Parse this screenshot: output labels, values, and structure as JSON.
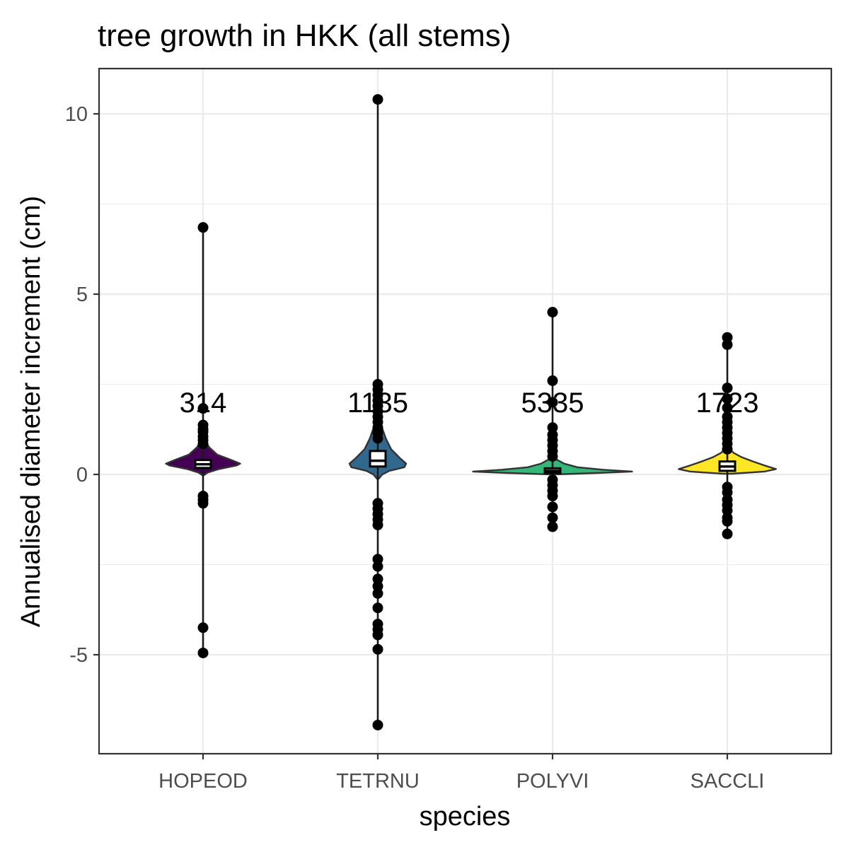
{
  "chart_data": {
    "type": "violin",
    "title": "tree growth in HKK (all stems)",
    "xlabel": "species",
    "ylabel": "Annualised diameter increment (cm)",
    "ylim": [
      -7.3,
      10.9
    ],
    "y_ticks": [
      -5,
      0,
      5,
      10
    ],
    "y_tick_labels": [
      "-5",
      "0",
      "5",
      "10"
    ],
    "grid": true,
    "categories": [
      "HOPEOD",
      "TETRNU",
      "POLYVI",
      "SACCLI"
    ],
    "series": [
      {
        "category": "HOPEOD",
        "n_label": "314",
        "fill": "#440154",
        "violin_profile": [
          [
            -0.02,
            0.01
          ],
          [
            0.05,
            0.05
          ],
          [
            0.15,
            0.18
          ],
          [
            0.25,
            0.38
          ],
          [
            0.3,
            0.42
          ],
          [
            0.4,
            0.32
          ],
          [
            0.55,
            0.16
          ],
          [
            0.75,
            0.07
          ],
          [
            0.95,
            0.02
          ]
        ],
        "box": {
          "q1": 0.18,
          "median": 0.28,
          "q3": 0.4
        },
        "whisker_low": -4.95,
        "whisker_high": 6.85,
        "outliers": [
          6.85,
          1.83,
          1.37,
          1.25,
          1.18,
          1.05,
          0.95,
          0.85,
          -0.6,
          -0.7,
          -0.8,
          -4.25,
          -4.95
        ]
      },
      {
        "category": "TETRNU",
        "n_label": "1135",
        "fill": "#31688e",
        "violin_profile": [
          [
            -0.12,
            0.01
          ],
          [
            0.0,
            0.05
          ],
          [
            0.1,
            0.13
          ],
          [
            0.2,
            0.3
          ],
          [
            0.3,
            0.32
          ],
          [
            0.45,
            0.25
          ],
          [
            0.7,
            0.15
          ],
          [
            1.0,
            0.09
          ],
          [
            1.35,
            0.04
          ],
          [
            1.7,
            0.01
          ]
        ],
        "box": {
          "q1": 0.22,
          "median": 0.38,
          "q3": 0.65
        },
        "whisker_low": -6.95,
        "whisker_high": 10.4,
        "outliers": [
          10.4,
          2.5,
          2.35,
          2.2,
          2.05,
          1.9,
          1.75,
          1.6,
          1.45,
          1.3,
          1.15,
          1.0,
          -0.8,
          -0.95,
          -1.1,
          -1.25,
          -1.4,
          -2.35,
          -2.55,
          -2.9,
          -3.1,
          -3.3,
          -3.7,
          -4.15,
          -4.3,
          -4.45,
          -4.85,
          -6.95
        ]
      },
      {
        "category": "POLYVI",
        "n_label": "5335",
        "fill": "#35b779",
        "violin_profile": [
          [
            0.0,
            0.02
          ],
          [
            0.04,
            0.5
          ],
          [
            0.08,
            0.9
          ],
          [
            0.13,
            0.58
          ],
          [
            0.2,
            0.28
          ],
          [
            0.3,
            0.13
          ],
          [
            0.42,
            0.04
          ],
          [
            0.52,
            0.01
          ]
        ],
        "box": {
          "q1": 0.04,
          "median": 0.1,
          "q3": 0.17
        },
        "whisker_low": -1.45,
        "whisker_high": 4.5,
        "outliers": [
          4.5,
          2.6,
          2.0,
          1.3,
          1.1,
          0.95,
          0.8,
          0.65,
          0.5,
          -0.15,
          -0.3,
          -0.45,
          -0.6,
          -0.9,
          -1.2,
          -1.45
        ]
      },
      {
        "category": "SACCLI",
        "n_label": "1723",
        "fill": "#fde725",
        "violin_profile": [
          [
            0.02,
            0.05
          ],
          [
            0.08,
            0.42
          ],
          [
            0.15,
            0.55
          ],
          [
            0.25,
            0.42
          ],
          [
            0.35,
            0.3
          ],
          [
            0.48,
            0.16
          ],
          [
            0.6,
            0.07
          ],
          [
            0.72,
            0.02
          ]
        ],
        "box": {
          "q1": 0.1,
          "median": 0.22,
          "q3": 0.36
        },
        "whisker_low": -1.65,
        "whisker_high": 3.8,
        "outliers": [
          3.8,
          3.6,
          2.4,
          2.1,
          1.85,
          1.6,
          1.45,
          1.3,
          1.15,
          1.0,
          0.85,
          0.7,
          -0.35,
          -0.5,
          -0.7,
          -0.85,
          -1.0,
          -1.2,
          -1.3,
          -1.65
        ]
      }
    ]
  }
}
